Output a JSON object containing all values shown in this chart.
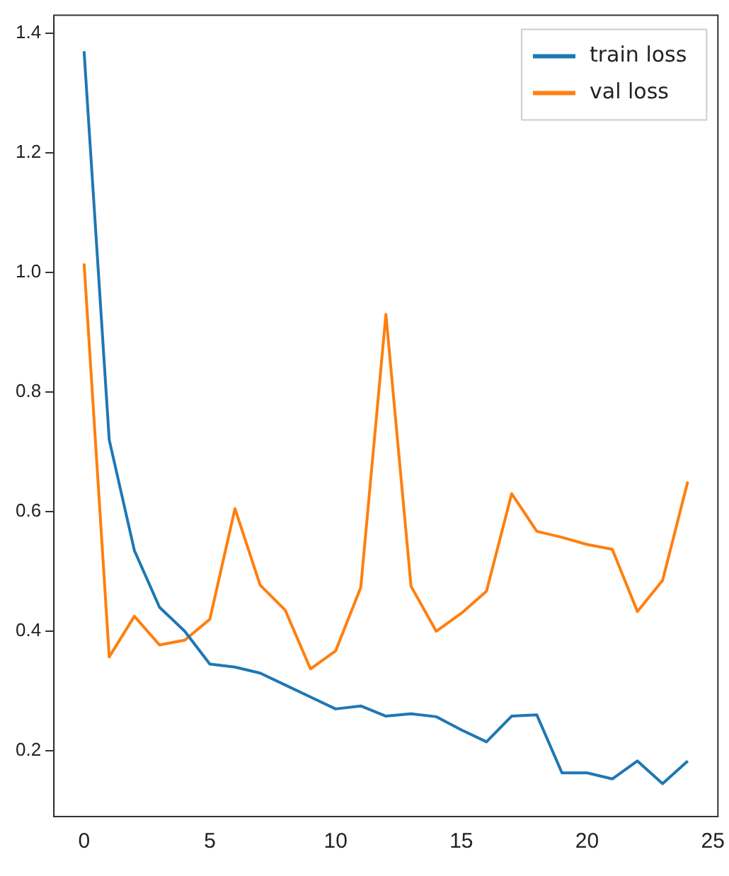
{
  "chart_data": {
    "type": "line",
    "x": [
      0,
      1,
      2,
      3,
      4,
      5,
      6,
      7,
      8,
      9,
      10,
      11,
      12,
      13,
      14,
      15,
      16,
      17,
      18,
      19,
      20,
      21,
      22,
      23,
      24
    ],
    "series": [
      {
        "name": "train loss",
        "color": "#1f77b4",
        "values": [
          1.37,
          0.72,
          0.535,
          0.44,
          0.4,
          0.345,
          0.34,
          0.33,
          0.31,
          0.29,
          0.27,
          0.275,
          0.258,
          0.262,
          0.257,
          0.235,
          0.215,
          0.258,
          0.26,
          0.163,
          0.163,
          0.153,
          0.183,
          0.145,
          0.183
        ]
      },
      {
        "name": "val loss",
        "color": "#ff7f0e",
        "values": [
          1.015,
          0.357,
          0.425,
          0.377,
          0.385,
          0.42,
          0.605,
          0.477,
          0.435,
          0.337,
          0.367,
          0.473,
          0.93,
          0.475,
          0.4,
          0.43,
          0.467,
          0.63,
          0.567,
          0.557,
          0.545,
          0.537,
          0.433,
          0.485,
          0.65
        ]
      }
    ],
    "xlim": [
      -1.2,
      25.2
    ],
    "xticks": [
      0,
      5,
      10,
      15,
      20,
      25
    ],
    "ylim": [
      0.09,
      1.43
    ],
    "yticks": [
      {
        "value": 0.2,
        "label": "0.2"
      },
      {
        "value": 0.4,
        "label": "0.4"
      },
      {
        "value": 0.6,
        "label": "0.6"
      },
      {
        "value": 0.8,
        "label": "0.8"
      },
      {
        "value": 1.0,
        "label": "1.0"
      },
      {
        "value": 1.2,
        "label": "1.2"
      },
      {
        "value": 1.4,
        "label": "1.4"
      }
    ],
    "grid": false,
    "legend": "top right",
    "marker": "none",
    "line_style": "solid"
  }
}
